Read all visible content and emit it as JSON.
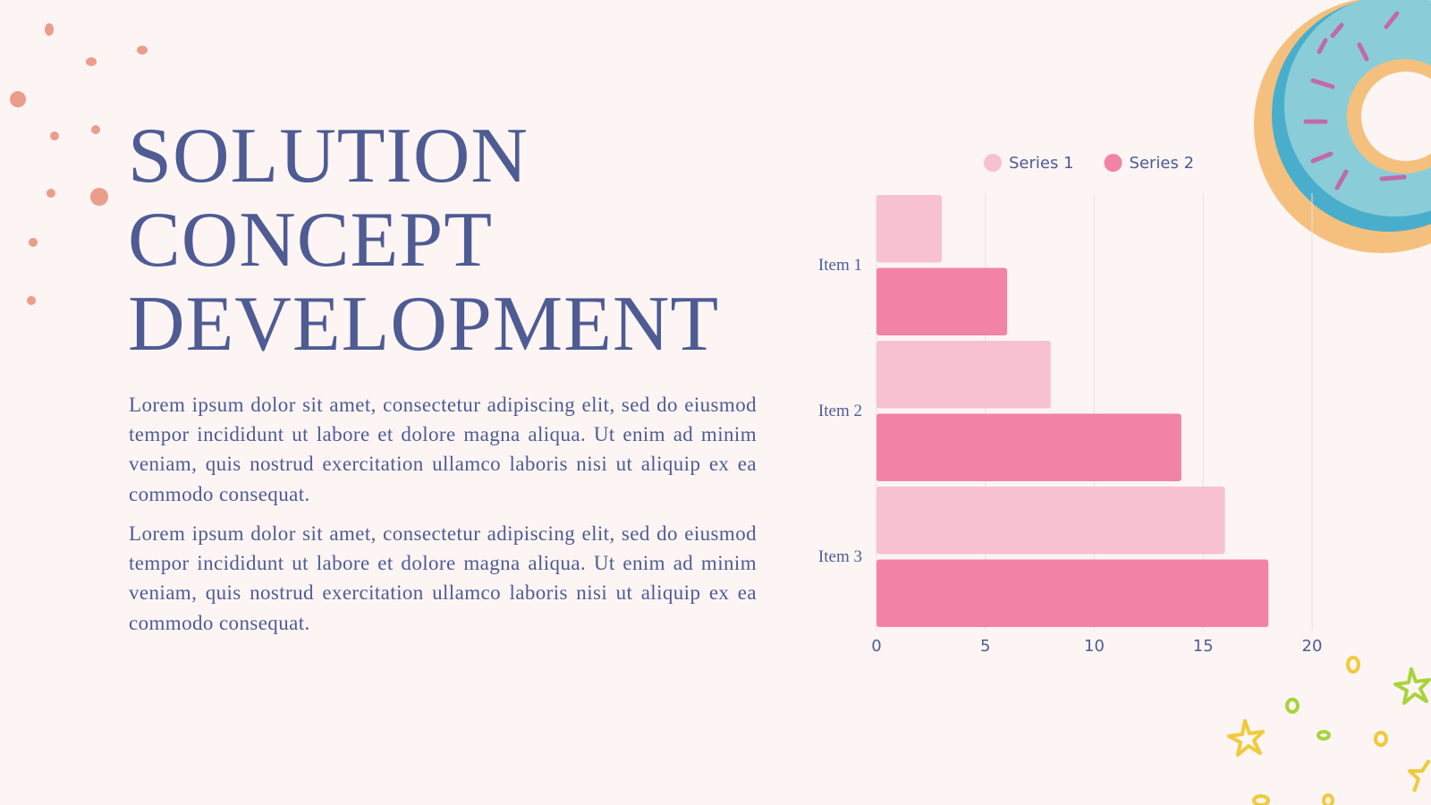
{
  "title_lines": [
    "SOLUTION",
    "CONCEPT",
    "DEVELOPMENT"
  ],
  "paragraphs": [
    "Lorem ipsum dolor sit amet, consectetur adipiscing elit, sed do eiusmod tempor incididunt ut labore et dolore magna aliqua. Ut enim ad minim veniam, quis nostrud exercitation ullamco laboris nisi ut aliquip ex ea commodo consequat.",
    "Lorem ipsum dolor sit amet, consectetur adipiscing elit, sed do eiusmod tempor incididunt ut labore et dolore magna aliqua. Ut enim ad minim veniam, quis nostrud exercitation ullamco laboris nisi ut aliquip ex ea commodo consequat."
  ],
  "chart_data": {
    "type": "bar",
    "orientation": "horizontal",
    "categories": [
      "Item 1",
      "Item 2",
      "Item 3"
    ],
    "series": [
      {
        "name": "Series 1",
        "color": "#f7c1cf",
        "values": [
          3,
          8,
          16
        ]
      },
      {
        "name": "Series 2",
        "color": "#f383a6",
        "values": [
          6,
          14,
          18
        ]
      }
    ],
    "xlim": [
      0,
      20
    ],
    "xticks": [
      0,
      5,
      10,
      15,
      20
    ],
    "grid": true,
    "legend": "top"
  }
}
